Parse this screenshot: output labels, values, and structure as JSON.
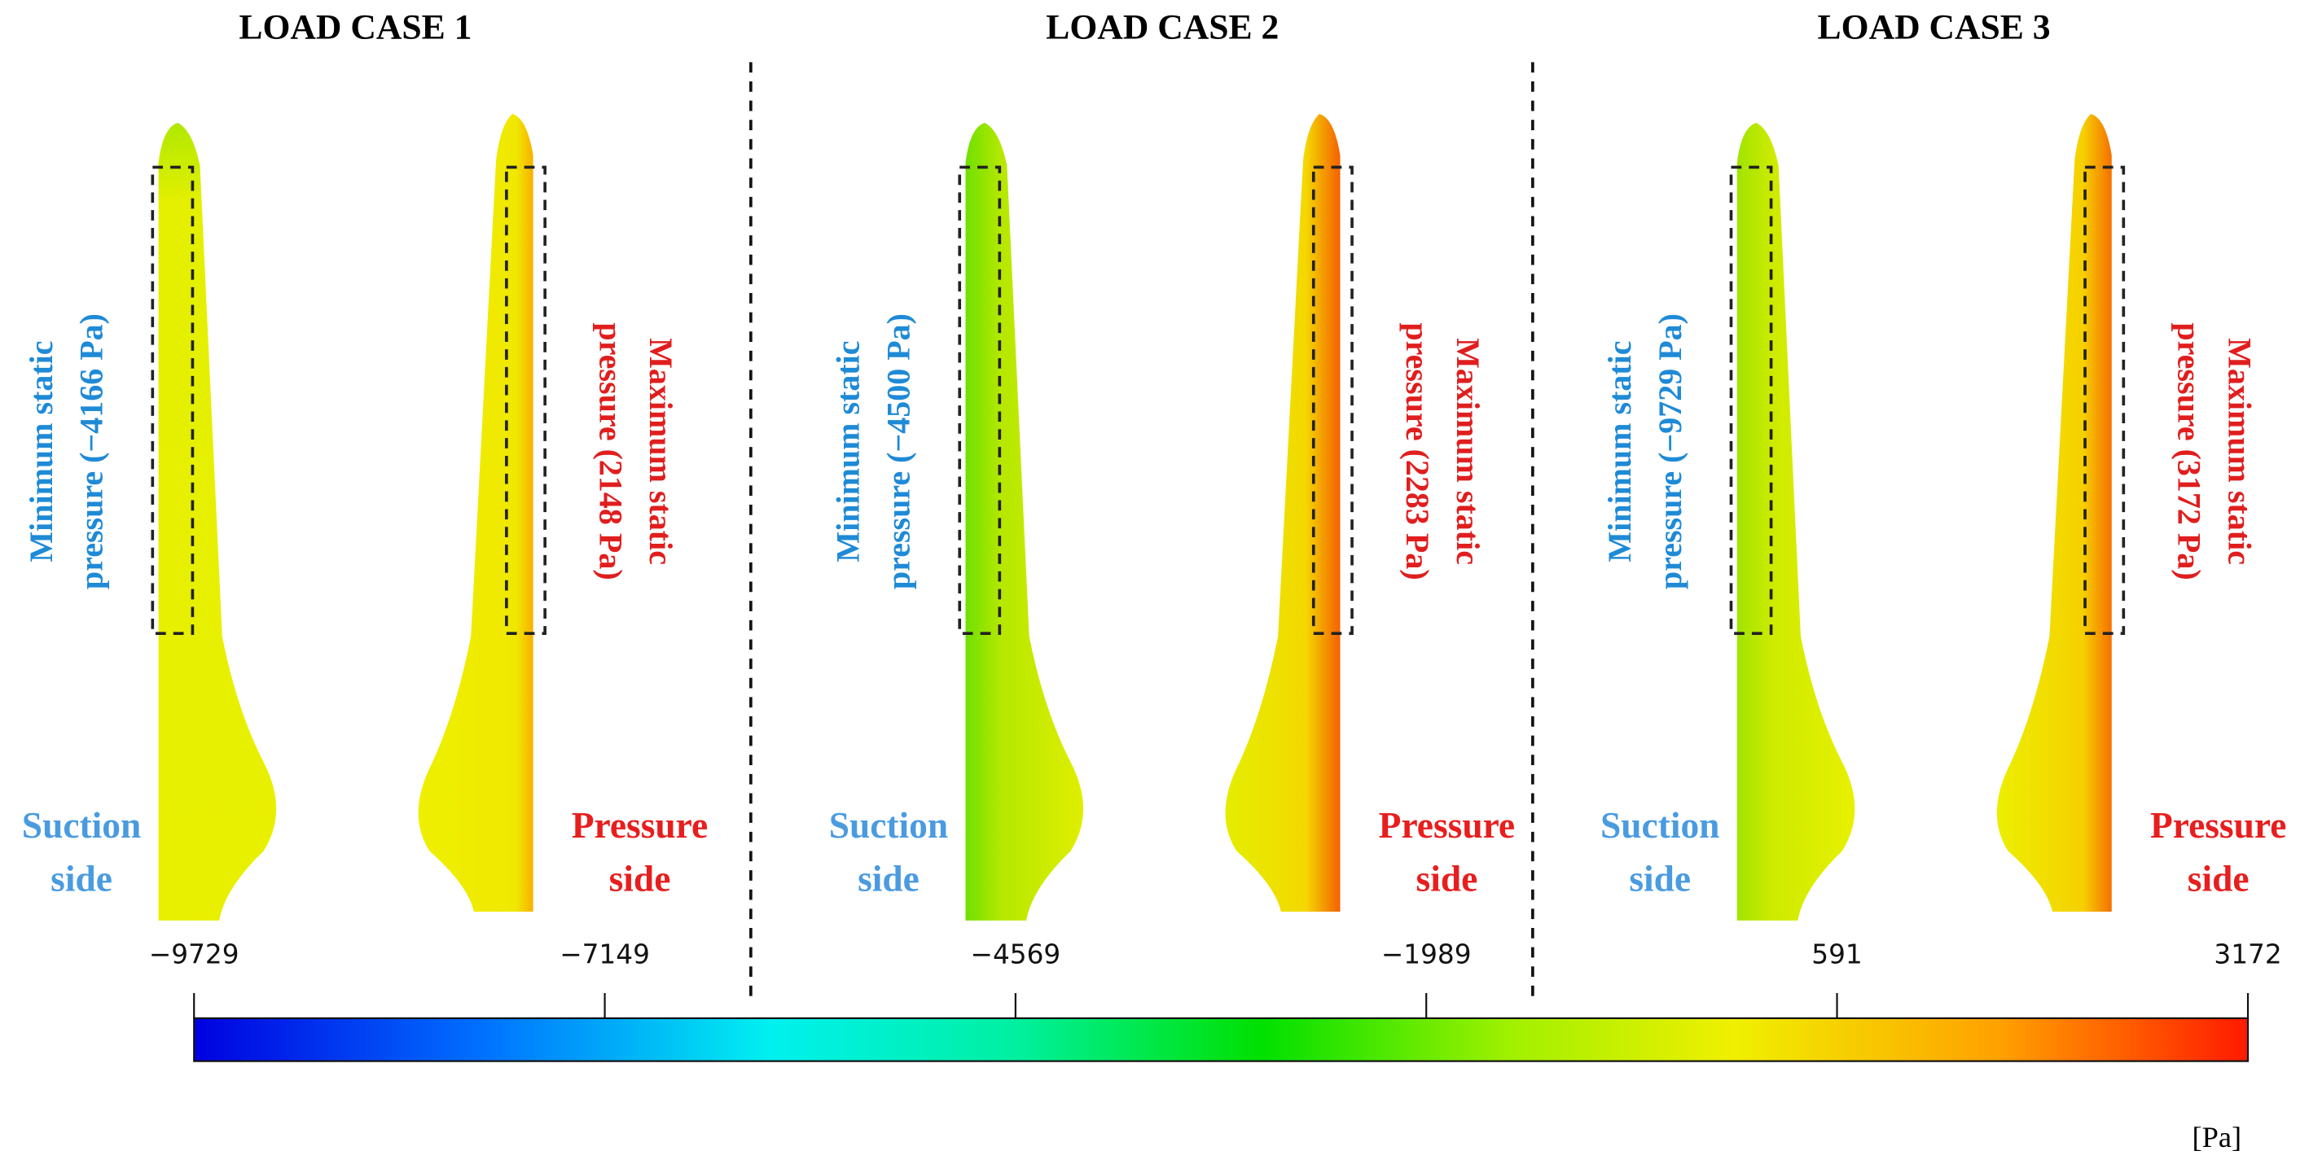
{
  "panels": [
    {
      "title": "LOAD CASE 1",
      "min_label": [
        "Minimum static",
        "pressure (−4166 Pa)"
      ],
      "max_label": [
        "Maximum static",
        "pressure (2148 Pa)"
      ],
      "suction_label": [
        "Suction",
        "side"
      ],
      "pressure_label": [
        "Pressure",
        "side"
      ]
    },
    {
      "title": "LOAD CASE 2",
      "min_label": [
        "Minimum static",
        "pressure (−4500 Pa)"
      ],
      "max_label": [
        "Maximum static",
        "pressure (2283 Pa)"
      ],
      "suction_label": [
        "Suction",
        "side"
      ],
      "pressure_label": [
        "Pressure",
        "side"
      ]
    },
    {
      "title": "LOAD CASE 3",
      "min_label": [
        "Minimum static",
        "pressure (−9729 Pa)"
      ],
      "max_label": [
        "Maximum static",
        "pressure (3172 Pa)"
      ],
      "suction_label": [
        "Suction",
        "side"
      ],
      "pressure_label": [
        "Pressure",
        "side"
      ]
    }
  ],
  "colorbar": {
    "range": [
      -9729,
      3172
    ],
    "ticks": [
      {
        "value": -9729,
        "label": "−9729"
      },
      {
        "value": -7149,
        "label": "−7149"
      },
      {
        "value": -4569,
        "label": "−4569"
      },
      {
        "value": -1989,
        "label": "−1989"
      },
      {
        "value": 591,
        "label": "591"
      },
      {
        "value": 3172,
        "label": "3172"
      }
    ],
    "unit": "[Pa]"
  }
}
